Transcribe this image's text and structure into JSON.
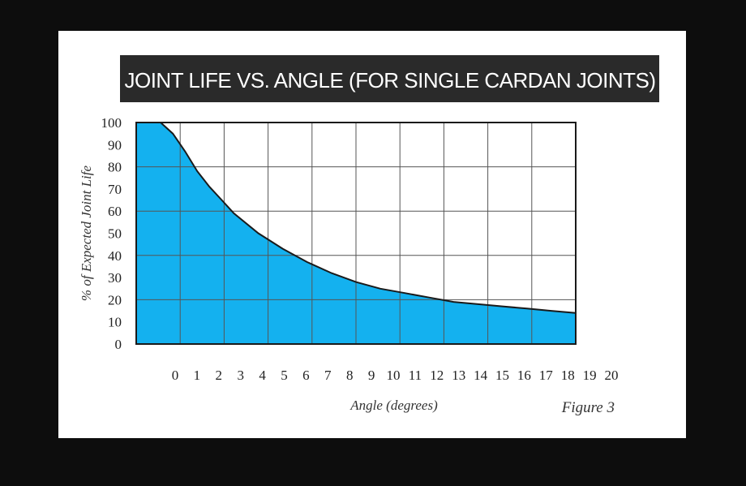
{
  "chart_data": {
    "type": "area",
    "title": "JOINT LIFE VS. ANGLE (FOR SINGLE CARDAN JOINTS)",
    "xlabel": "Angle (degrees)",
    "ylabel": "% of Expected Joint Life",
    "figure_label": "Figure 3",
    "x_ticks": [
      "0",
      "1",
      "2",
      "3",
      "4",
      "5",
      "6",
      "7",
      "8",
      "9",
      "10",
      "11",
      "12",
      "13",
      "14",
      "15",
      "16",
      "17",
      "18",
      "19",
      "20"
    ],
    "y_ticks": [
      "0",
      "10",
      "20",
      "30",
      "40",
      "50",
      "60",
      "70",
      "80",
      "90",
      "100"
    ],
    "xlim": [
      0,
      20
    ],
    "ylim": [
      0,
      100
    ],
    "grid": true,
    "fill_color": "#00aaee",
    "line_color": "#1a1a1a",
    "series": [
      {
        "x": [
          0,
          1,
          1.5,
          2,
          2.5,
          3,
          3.5,
          4,
          5,
          6,
          7,
          8,
          9,
          10,
          11,
          12,
          13,
          14,
          15,
          16,
          17,
          18
        ],
        "y": [
          100,
          100,
          95,
          87,
          78,
          71,
          65,
          59,
          50,
          43,
          37,
          32,
          28,
          25,
          23,
          21,
          19,
          18,
          17,
          16,
          15,
          14
        ]
      }
    ]
  }
}
